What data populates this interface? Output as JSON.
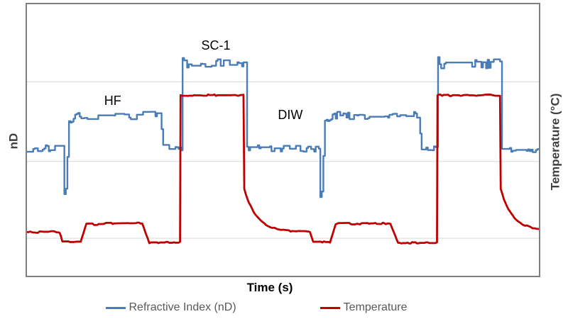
{
  "figure": {
    "background": "#FFFFFF",
    "plot_border_color": "#7F7F7F",
    "gridline_color": "#D9D9D9"
  },
  "chart_data": {
    "type": "line",
    "title": "",
    "xlabel": "Time (s)",
    "ylabel_left": "nD",
    "ylabel_right": "Temperature (°C)",
    "x_axis": {
      "range": [
        0,
        100
      ],
      "tick_labels": "none"
    },
    "y_axis": {
      "range": [
        0,
        100
      ],
      "tick_labels": "none",
      "note": "no numeric tick labels shown; values are relative signal levels (percent of plot height)"
    },
    "grid": {
      "orientation": "horizontal",
      "values": [
        13.8,
        42.1,
        71.4
      ],
      "color": "#D9D9D9"
    },
    "legend": {
      "position": "bottom",
      "text_color": "#595959",
      "items": [
        {
          "label": "Refractive Index (nD)",
          "color": "#4A7CB8"
        },
        {
          "label": "Temperature",
          "color": "#C00000"
        }
      ]
    },
    "annotations": [
      {
        "text": "HF",
        "x": 16.7,
        "y": 64.7
      },
      {
        "text": "SC-1",
        "x": 36.8,
        "y": 84.9
      },
      {
        "text": "DIW",
        "x": 51.3,
        "y": 59.5
      }
    ],
    "series": [
      {
        "name": "Refractive Index (nD)",
        "color": "#4A7CB8",
        "width": 2.4,
        "style": "step",
        "seed": 7,
        "segments": [
          {
            "x0": 0.0,
            "x1": 7.0,
            "v0": 46.8,
            "v1": 46.8,
            "noise": 1.3
          },
          {
            "x0": 7.0,
            "x1": 7.3,
            "v0": 46.8,
            "v1": 29.0,
            "noise": 0.3
          },
          {
            "x0": 7.3,
            "x1": 7.6,
            "v0": 29.0,
            "v1": 31.0,
            "noise": 0.3
          },
          {
            "x0": 7.6,
            "x1": 8.2,
            "v0": 31.0,
            "v1": 57.0,
            "noise": 0.3
          },
          {
            "x0": 8.2,
            "x1": 10.0,
            "v0": 57.0,
            "v1": 59.0,
            "noise": 1.1
          },
          {
            "x0": 10.0,
            "x1": 26.0,
            "v0": 59.0,
            "v1": 59.0,
            "noise": 1.4
          },
          {
            "x0": 26.0,
            "x1": 26.6,
            "v0": 59.0,
            "v1": 47.3,
            "noise": 0.4
          },
          {
            "x0": 26.6,
            "x1": 30.2,
            "v0": 47.3,
            "v1": 47.3,
            "noise": 1.1
          },
          {
            "x0": 30.2,
            "x1": 30.4,
            "v0": 47.3,
            "v1": 80.5,
            "noise": 0.3
          },
          {
            "x0": 30.4,
            "x1": 42.6,
            "v0": 77.9,
            "v1": 77.9,
            "noise": 1.9
          },
          {
            "x0": 42.6,
            "x1": 43.0,
            "v0": 77.9,
            "v1": 46.8,
            "noise": 0.3
          },
          {
            "x0": 43.0,
            "x1": 57.0,
            "v0": 46.8,
            "v1": 46.8,
            "noise": 1.3
          },
          {
            "x0": 57.0,
            "x1": 57.3,
            "v0": 46.8,
            "v1": 29.0,
            "noise": 0.3
          },
          {
            "x0": 57.3,
            "x1": 57.6,
            "v0": 29.0,
            "v1": 31.0,
            "noise": 0.3
          },
          {
            "x0": 57.6,
            "x1": 58.2,
            "v0": 31.0,
            "v1": 57.0,
            "noise": 0.3
          },
          {
            "x0": 58.2,
            "x1": 60.0,
            "v0": 57.0,
            "v1": 59.0,
            "noise": 1.1
          },
          {
            "x0": 60.0,
            "x1": 76.5,
            "v0": 59.0,
            "v1": 59.0,
            "noise": 1.4
          },
          {
            "x0": 76.5,
            "x1": 77.1,
            "v0": 59.0,
            "v1": 47.3,
            "noise": 0.4
          },
          {
            "x0": 77.1,
            "x1": 80.1,
            "v0": 47.3,
            "v1": 47.3,
            "noise": 1.1
          },
          {
            "x0": 80.1,
            "x1": 80.3,
            "v0": 47.3,
            "v1": 80.5,
            "noise": 0.3
          },
          {
            "x0": 80.3,
            "x1": 92.4,
            "v0": 77.9,
            "v1": 77.9,
            "noise": 1.9
          },
          {
            "x0": 92.4,
            "x1": 92.8,
            "v0": 77.9,
            "v1": 46.8,
            "noise": 0.3
          },
          {
            "x0": 92.8,
            "x1": 100.0,
            "v0": 46.8,
            "v1": 46.8,
            "noise": 1.3
          }
        ]
      },
      {
        "name": "Temperature",
        "color": "#C00000",
        "width": 2.8,
        "style": "line",
        "seed": 3,
        "segments": [
          {
            "x0": 0.0,
            "x1": 6.4,
            "v0": 16.1,
            "v1": 16.1,
            "noise": 0.35
          },
          {
            "x0": 6.4,
            "x1": 6.9,
            "v0": 16.1,
            "v1": 12.5,
            "noise": 0.2
          },
          {
            "x0": 6.9,
            "x1": 10.5,
            "v0": 12.5,
            "v1": 12.5,
            "noise": 0.3
          },
          {
            "x0": 10.5,
            "x1": 11.6,
            "v0": 12.5,
            "v1": 19.0,
            "noise": 0.2
          },
          {
            "x0": 11.6,
            "x1": 22.5,
            "v0": 19.0,
            "v1": 19.3,
            "noise": 0.4
          },
          {
            "x0": 22.5,
            "x1": 23.9,
            "v0": 19.3,
            "v1": 12.2,
            "noise": 0.2
          },
          {
            "x0": 23.9,
            "x1": 29.9,
            "v0": 12.2,
            "v1": 12.2,
            "noise": 0.3
          },
          {
            "x0": 29.9,
            "x1": 30.0,
            "v0": 12.2,
            "v1": 66.5,
            "noise": 0
          },
          {
            "x0": 30.0,
            "x1": 42.3,
            "v0": 66.5,
            "v1": 66.5,
            "noise": 0.3
          },
          {
            "x0": 42.3,
            "x1": 42.45,
            "v0": 66.5,
            "v1": 32.0,
            "noise": 0
          },
          {
            "x0": 42.45,
            "x1": 54.5,
            "v0": 32.0,
            "v1": 16.1,
            "noise": 0.25,
            "curve": "exp",
            "k": 5
          },
          {
            "x0": 54.5,
            "x1": 55.3,
            "v0": 16.1,
            "v1": 16.1,
            "noise": 0.3
          },
          {
            "x0": 55.3,
            "x1": 55.9,
            "v0": 16.1,
            "v1": 12.5,
            "noise": 0.2
          },
          {
            "x0": 55.9,
            "x1": 59.2,
            "v0": 12.5,
            "v1": 12.5,
            "noise": 0.3
          },
          {
            "x0": 59.2,
            "x1": 60.3,
            "v0": 12.5,
            "v1": 19.0,
            "noise": 0.2
          },
          {
            "x0": 60.3,
            "x1": 71.0,
            "v0": 19.0,
            "v1": 19.3,
            "noise": 0.4
          },
          {
            "x0": 71.0,
            "x1": 72.5,
            "v0": 19.3,
            "v1": 12.2,
            "noise": 0.2
          },
          {
            "x0": 72.5,
            "x1": 80.1,
            "v0": 12.2,
            "v1": 12.2,
            "noise": 0.3
          },
          {
            "x0": 80.1,
            "x1": 80.2,
            "v0": 12.2,
            "v1": 66.5,
            "noise": 0
          },
          {
            "x0": 80.2,
            "x1": 92.4,
            "v0": 66.5,
            "v1": 66.5,
            "noise": 0.3
          },
          {
            "x0": 92.4,
            "x1": 92.55,
            "v0": 66.5,
            "v1": 32.0,
            "noise": 0
          },
          {
            "x0": 92.55,
            "x1": 100.0,
            "v0": 32.0,
            "v1": 16.8,
            "noise": 0.25,
            "curve": "exp",
            "k": 3.4
          }
        ]
      }
    ]
  }
}
